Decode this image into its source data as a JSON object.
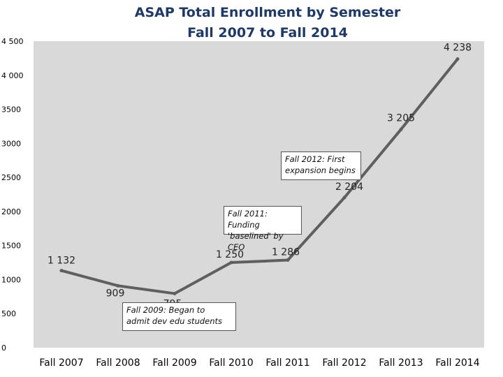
{
  "chart_data": {
    "type": "line",
    "title_line1": "ASAP Total Enrollment by Semester",
    "title_line2": "Fall 2007 to Fall 2014",
    "xlabel": "",
    "ylabel": "",
    "categories": [
      "Fall 2007",
      "Fall 2008",
      "Fall 2009",
      "Fall 2010",
      "Fall 2011",
      "Fall 2012",
      "Fall 2013",
      "Fall 2014"
    ],
    "values": [
      1132,
      909,
      795,
      1250,
      1286,
      2204,
      3205,
      4238
    ],
    "data_labels": [
      "1 132",
      "909",
      "795",
      "1 250",
      "1 286",
      "2 204",
      "3 205",
      "4 238"
    ],
    "ylim": [
      0,
      4500
    ],
    "yticks": [
      0,
      500,
      1000,
      1500,
      2000,
      2500,
      3000,
      3500,
      4000,
      4500
    ],
    "ytick_labels": [
      "0",
      "500",
      "1000",
      "1500",
      "2000",
      "2500",
      "3000",
      "3500",
      "4 000",
      "4 500"
    ],
    "grid": false,
    "plot_background": "#d9d9d9",
    "line_color": "#5f5f5f",
    "annotations": [
      {
        "text_line1": "Fall 2009:  Began to",
        "text_line2": "admit dev edu students"
      },
      {
        "text_line1": "Fall 2011:  Funding",
        "text_line2": "'baselined' by CEO"
      },
      {
        "text_line1": "Fall 2012:  First",
        "text_line2": "expansion begins"
      }
    ]
  }
}
